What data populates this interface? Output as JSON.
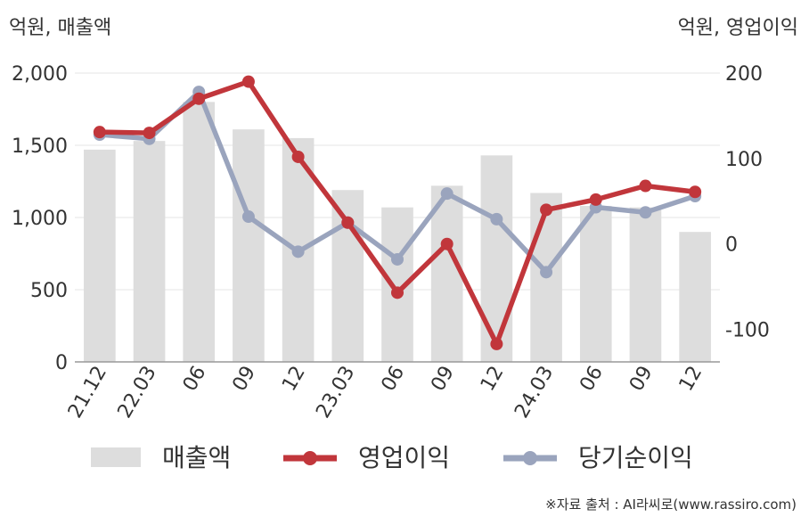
{
  "chart_data": {
    "type": "bar+line",
    "left_axis_label": "억원, 매출액",
    "right_axis_label": "억원, 영업이익",
    "categories": [
      "21.12",
      "22.03",
      "06",
      "09",
      "12",
      "23.03",
      "06",
      "09",
      "12",
      "24.03",
      "06",
      "09",
      "12"
    ],
    "left_ylim": [
      0,
      2000
    ],
    "left_ticks": [
      "0",
      "500",
      "1,000",
      "1,500",
      "2,000"
    ],
    "left_tick_values": [
      0,
      500,
      1000,
      1500,
      2000
    ],
    "right_ylim": [
      -138,
      200
    ],
    "right_ticks": [
      "-100",
      "0",
      "100",
      "200"
    ],
    "right_tick_values": [
      -100,
      0,
      100,
      200
    ],
    "grid": true,
    "legend_placement": "bottom",
    "series": [
      {
        "name": "매출액",
        "type": "bar",
        "axis": "left",
        "color": "#dddddd",
        "values": [
          1470,
          1530,
          1800,
          1610,
          1550,
          1190,
          1070,
          1220,
          1430,
          1170,
          1080,
          1070,
          900
        ]
      },
      {
        "name": "영업이익",
        "type": "line",
        "axis": "right",
        "color": "#c1363b",
        "values": [
          131,
          130,
          170,
          190,
          102,
          25,
          -57,
          0,
          -117,
          40,
          52,
          68,
          61
        ]
      },
      {
        "name": "당기순이익",
        "type": "line",
        "axis": "right",
        "color": "#9aa4bd",
        "values": [
          128,
          123,
          178,
          32,
          -9,
          25,
          -18,
          59,
          29,
          -33,
          43,
          37,
          56
        ]
      }
    ]
  },
  "source_note": "※자료 출처 : AI라씨로(www.rassiro.com)"
}
